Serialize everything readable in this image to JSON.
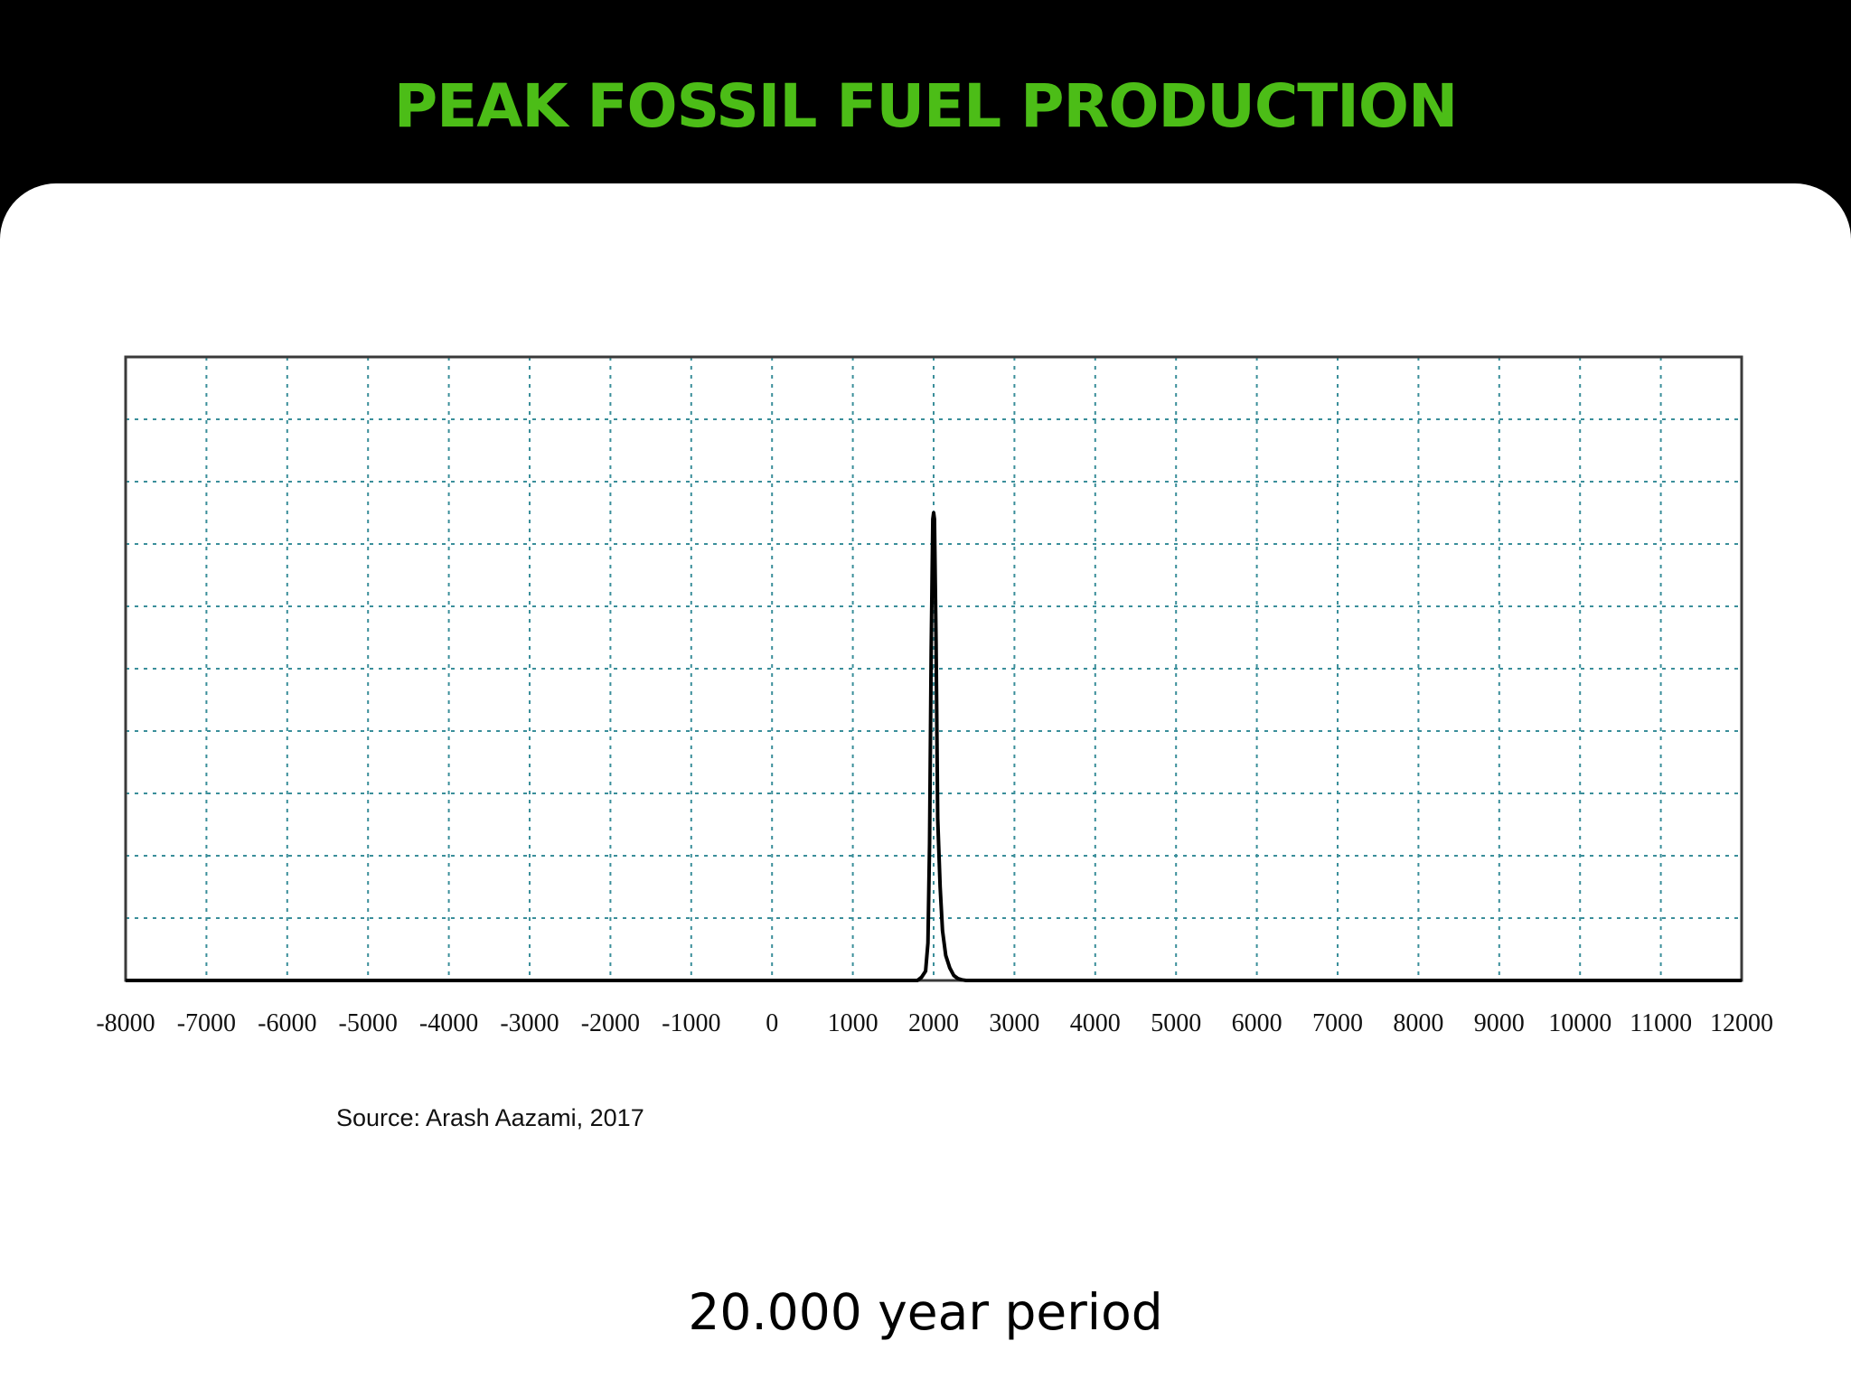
{
  "slide": {
    "title": "PEAK FOSSIL FUEL PRODUCTION",
    "source": "Source: Arash Aazami, 2017",
    "caption": "20.000 year period"
  },
  "colors": {
    "title": "#4cbd17",
    "background": "#000000",
    "panel": "#ffffff",
    "grid": "#3a8e9a",
    "line": "#000000"
  },
  "chart_data": {
    "type": "line",
    "title": "",
    "xlabel": "",
    "ylabel": "",
    "xlim": [
      -8000,
      12000
    ],
    "ylim": [
      0,
      10
    ],
    "grid": true,
    "y_tick_count": 10,
    "x_ticks": [
      -8000,
      -7000,
      -6000,
      -5000,
      -4000,
      -3000,
      -2000,
      -1000,
      0,
      1000,
      2000,
      3000,
      4000,
      5000,
      6000,
      7000,
      8000,
      9000,
      10000,
      11000,
      12000
    ],
    "x_tick_labels": [
      "-8000",
      "-7000",
      "-6000",
      "-5000",
      "-4000",
      "-3000",
      "-2000",
      "-1000",
      "0",
      "1000",
      "2000",
      "3000",
      "4000",
      "5000",
      "6000",
      "7000",
      "8000",
      "9000",
      "10000",
      "11000",
      "12000"
    ],
    "series": [
      {
        "x": [
          -8000,
          1800,
          1850,
          1900,
          1930,
          1950,
          1970,
          1990,
          2000,
          2010,
          2030,
          2050,
          2080,
          2110,
          2150,
          2200,
          2250,
          2300,
          2350,
          2400,
          12000
        ],
        "y": [
          0,
          0,
          0.05,
          0.15,
          0.6,
          2.2,
          5.3,
          7.4,
          7.5,
          7.4,
          5.4,
          2.6,
          1.5,
          0.8,
          0.4,
          0.2,
          0.08,
          0.03,
          0.01,
          0,
          0
        ]
      }
    ]
  }
}
